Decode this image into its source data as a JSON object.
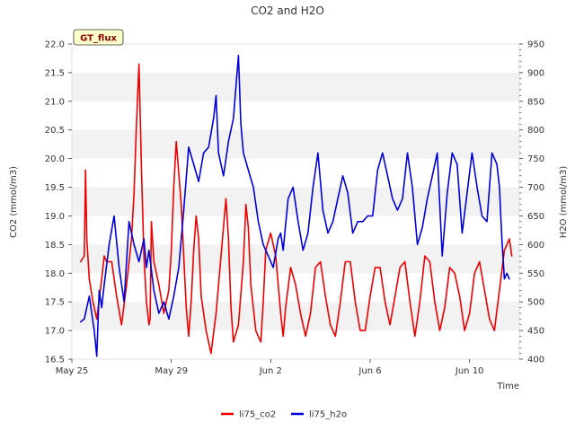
{
  "chart_data": {
    "type": "line",
    "title": "CO2 and H2O",
    "xlabel": "Time",
    "ylabel_left": "CO2 (mmol/m3)",
    "ylabel_right": "H2O (mmol/m3)",
    "badge": "GT_flux",
    "x_ticks": [
      "May 25",
      "May 29",
      "Jun 2",
      "Jun 6",
      "Jun 10"
    ],
    "x_tick_days": [
      0,
      4,
      8,
      12,
      16
    ],
    "xlim_days": [
      0,
      18
    ],
    "ylim_left": [
      16.5,
      22.0
    ],
    "y_ticks_left": [
      "16.5",
      "17.0",
      "17.5",
      "18.0",
      "18.5",
      "19.0",
      "19.5",
      "20.0",
      "20.5",
      "21.0",
      "21.5",
      "22.0"
    ],
    "ylim_right": [
      400,
      950
    ],
    "y_ticks_right": [
      "400",
      "450",
      "500",
      "550",
      "600",
      "650",
      "700",
      "750",
      "800",
      "850",
      "900",
      "950"
    ],
    "grid": "horizontal bands",
    "legend_position": "bottom-center",
    "colors": {
      "co2": "#ee0000",
      "h2o": "#0000dd",
      "band": "#f2f2f2"
    },
    "series": [
      {
        "name": "li75_co2",
        "axis": "left",
        "color": "#ee0000",
        "x": [
          0.35,
          0.5,
          0.55,
          0.6,
          0.7,
          0.85,
          1.0,
          1.2,
          1.3,
          1.4,
          1.5,
          1.6,
          1.8,
          2.0,
          2.2,
          2.4,
          2.5,
          2.6,
          2.7,
          2.8,
          2.9,
          3.0,
          3.1,
          3.15,
          3.2,
          3.3,
          3.5,
          3.7,
          3.8,
          3.9,
          4.0,
          4.1,
          4.2,
          4.4,
          4.6,
          4.7,
          4.8,
          4.9,
          5.0,
          5.1,
          5.2,
          5.4,
          5.6,
          5.8,
          6.0,
          6.2,
          6.3,
          6.4,
          6.5,
          6.7,
          6.9,
          7.0,
          7.1,
          7.2,
          7.4,
          7.6,
          7.7,
          7.8,
          8.0,
          8.2,
          8.4,
          8.5,
          8.6,
          8.8,
          9.0,
          9.2,
          9.4,
          9.6,
          9.8,
          10.0,
          10.2,
          10.4,
          10.6,
          10.8,
          11.0,
          11.2,
          11.4,
          11.6,
          11.8,
          12.0,
          12.2,
          12.4,
          12.6,
          12.8,
          13.0,
          13.2,
          13.4,
          13.6,
          13.8,
          14.0,
          14.2,
          14.4,
          14.6,
          14.8,
          15.0,
          15.2,
          15.4,
          15.6,
          15.8,
          16.0,
          16.2,
          16.4,
          16.6,
          16.8,
          17.0,
          17.2,
          17.4,
          17.5,
          17.6,
          17.7
        ],
        "y": [
          18.2,
          18.3,
          19.8,
          18.6,
          17.9,
          17.5,
          17.2,
          17.9,
          18.3,
          18.2,
          18.2,
          18.2,
          17.6,
          17.1,
          17.8,
          18.6,
          19.4,
          20.6,
          21.65,
          19.8,
          18.3,
          17.5,
          17.1,
          17.2,
          18.9,
          18.2,
          17.8,
          17.3,
          17.5,
          17.7,
          18.4,
          19.5,
          20.3,
          19.2,
          17.4,
          16.9,
          17.5,
          18.4,
          19.0,
          18.6,
          17.6,
          17.0,
          16.6,
          17.3,
          18.3,
          19.3,
          18.6,
          17.4,
          16.8,
          17.1,
          18.2,
          19.2,
          18.8,
          17.8,
          17.0,
          16.8,
          17.5,
          18.4,
          18.7,
          18.3,
          17.3,
          16.9,
          17.4,
          18.1,
          17.8,
          17.3,
          16.9,
          17.3,
          18.1,
          18.2,
          17.6,
          17.1,
          16.9,
          17.5,
          18.2,
          18.2,
          17.5,
          17.0,
          17.0,
          17.6,
          18.1,
          18.1,
          17.5,
          17.1,
          17.6,
          18.1,
          18.2,
          17.5,
          16.9,
          17.5,
          18.3,
          18.2,
          17.5,
          17.0,
          17.4,
          18.1,
          18.0,
          17.6,
          17.0,
          17.3,
          18.0,
          18.2,
          17.7,
          17.2,
          17.0,
          17.7,
          18.4,
          18.5,
          18.6,
          18.3
        ]
      },
      {
        "name": "li75_h2o",
        "axis": "right",
        "color": "#0000dd",
        "x": [
          0.35,
          0.5,
          0.7,
          0.9,
          1.0,
          1.1,
          1.2,
          1.3,
          1.5,
          1.7,
          1.9,
          2.1,
          2.3,
          2.5,
          2.7,
          2.9,
          3.0,
          3.1,
          3.3,
          3.5,
          3.7,
          3.9,
          4.1,
          4.3,
          4.5,
          4.7,
          4.9,
          5.1,
          5.3,
          5.5,
          5.7,
          5.8,
          5.9,
          6.1,
          6.3,
          6.5,
          6.7,
          6.8,
          6.9,
          7.1,
          7.3,
          7.5,
          7.7,
          7.9,
          8.1,
          8.3,
          8.4,
          8.5,
          8.7,
          8.9,
          9.1,
          9.3,
          9.5,
          9.7,
          9.9,
          10.1,
          10.3,
          10.5,
          10.7,
          10.9,
          11.1,
          11.3,
          11.5,
          11.7,
          11.9,
          12.1,
          12.3,
          12.5,
          12.7,
          12.9,
          13.1,
          13.3,
          13.5,
          13.7,
          13.9,
          14.1,
          14.3,
          14.5,
          14.7,
          14.9,
          15.1,
          15.3,
          15.5,
          15.7,
          15.9,
          16.1,
          16.3,
          16.5,
          16.7,
          16.9,
          17.1,
          17.2,
          17.3,
          17.4,
          17.5,
          17.6
        ],
        "y": [
          465,
          470,
          510,
          450,
          405,
          520,
          490,
          530,
          600,
          650,
          560,
          500,
          640,
          600,
          570,
          610,
          560,
          590,
          520,
          480,
          500,
          470,
          510,
          560,
          660,
          770,
          740,
          710,
          760,
          770,
          820,
          860,
          760,
          720,
          780,
          820,
          930,
          810,
          760,
          730,
          700,
          640,
          600,
          580,
          560,
          610,
          620,
          590,
          680,
          700,
          640,
          590,
          620,
          700,
          760,
          660,
          620,
          640,
          680,
          720,
          690,
          620,
          640,
          640,
          650,
          650,
          730,
          760,
          720,
          680,
          660,
          680,
          760,
          700,
          600,
          630,
          680,
          720,
          760,
          580,
          690,
          760,
          740,
          620,
          690,
          760,
          700,
          650,
          640,
          760,
          740,
          700,
          610,
          540,
          550,
          540
        ]
      }
    ],
    "legend": [
      {
        "label": "li75_co2",
        "color": "#ee0000"
      },
      {
        "label": "li75_h2o",
        "color": "#0000dd"
      }
    ]
  }
}
